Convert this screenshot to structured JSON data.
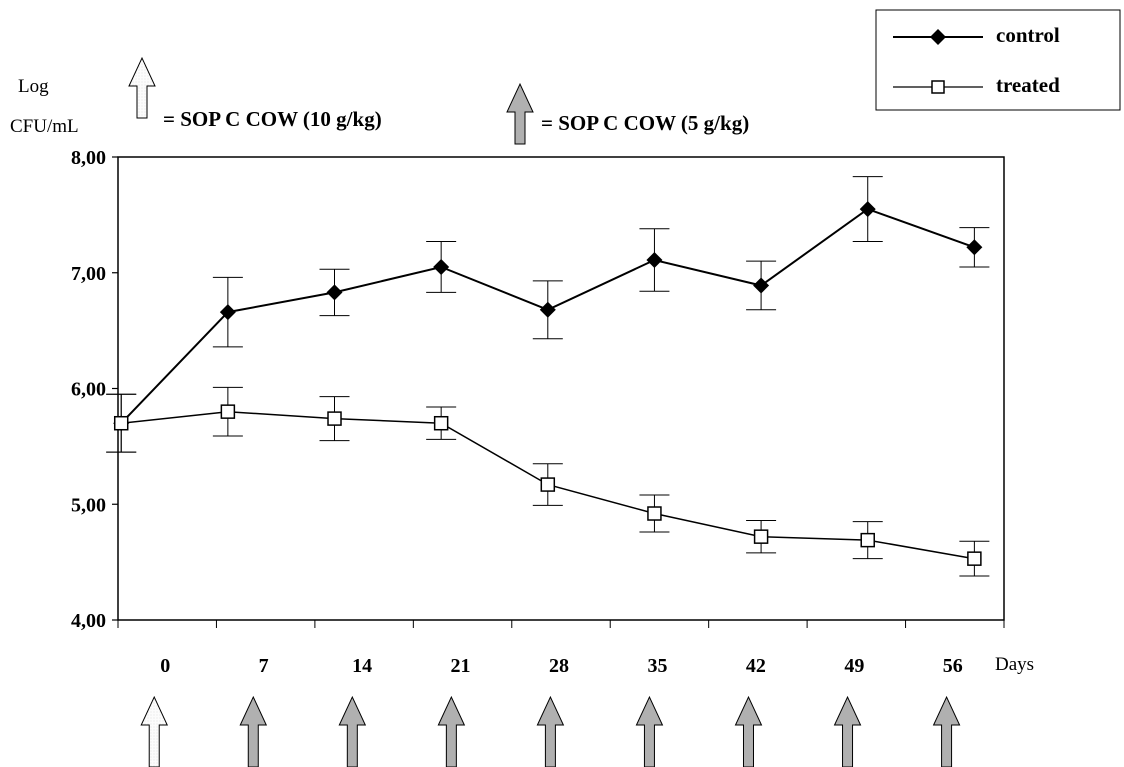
{
  "chart_data": {
    "type": "line",
    "ylabel_line1": "Log",
    "ylabel_line2": "CFU/mL",
    "xlabel": "Days",
    "ylim": [
      4.0,
      8.0
    ],
    "yticks": [
      "4,00",
      "5,00",
      "6,00",
      "7,00",
      "8,00"
    ],
    "ytick_values": [
      4,
      5,
      6,
      7,
      8
    ],
    "categories": [
      "0",
      "7",
      "14",
      "21",
      "28",
      "35",
      "42",
      "49",
      "56"
    ],
    "series": [
      {
        "name": "control",
        "marker": "filled-diamond",
        "values": [
          5.7,
          6.66,
          6.83,
          7.05,
          6.68,
          7.11,
          6.89,
          7.55,
          7.22
        ],
        "errors": [
          0.25,
          0.3,
          0.2,
          0.22,
          0.25,
          0.27,
          0.21,
          0.28,
          0.17
        ]
      },
      {
        "name": "treated",
        "marker": "open-square",
        "values": [
          5.7,
          5.8,
          5.74,
          5.7,
          5.17,
          4.92,
          4.72,
          4.69,
          4.53
        ],
        "errors": [
          0.25,
          0.21,
          0.19,
          0.14,
          0.18,
          0.16,
          0.14,
          0.16,
          0.15
        ]
      }
    ],
    "legend_position": "top-right",
    "dose_legend": {
      "light_arrow_label": "= SOP C COW (10 g/kg)",
      "dark_arrow_label": "= SOP C COW (5 g/kg)"
    },
    "dose_arrows": [
      "light",
      "dark",
      "dark",
      "dark",
      "dark",
      "dark",
      "dark",
      "dark",
      "dark"
    ],
    "colors": {
      "line": "#000000",
      "light_arrow_fill": "#fbfbfb",
      "dark_arrow_fill": "#b0b0b0"
    }
  }
}
